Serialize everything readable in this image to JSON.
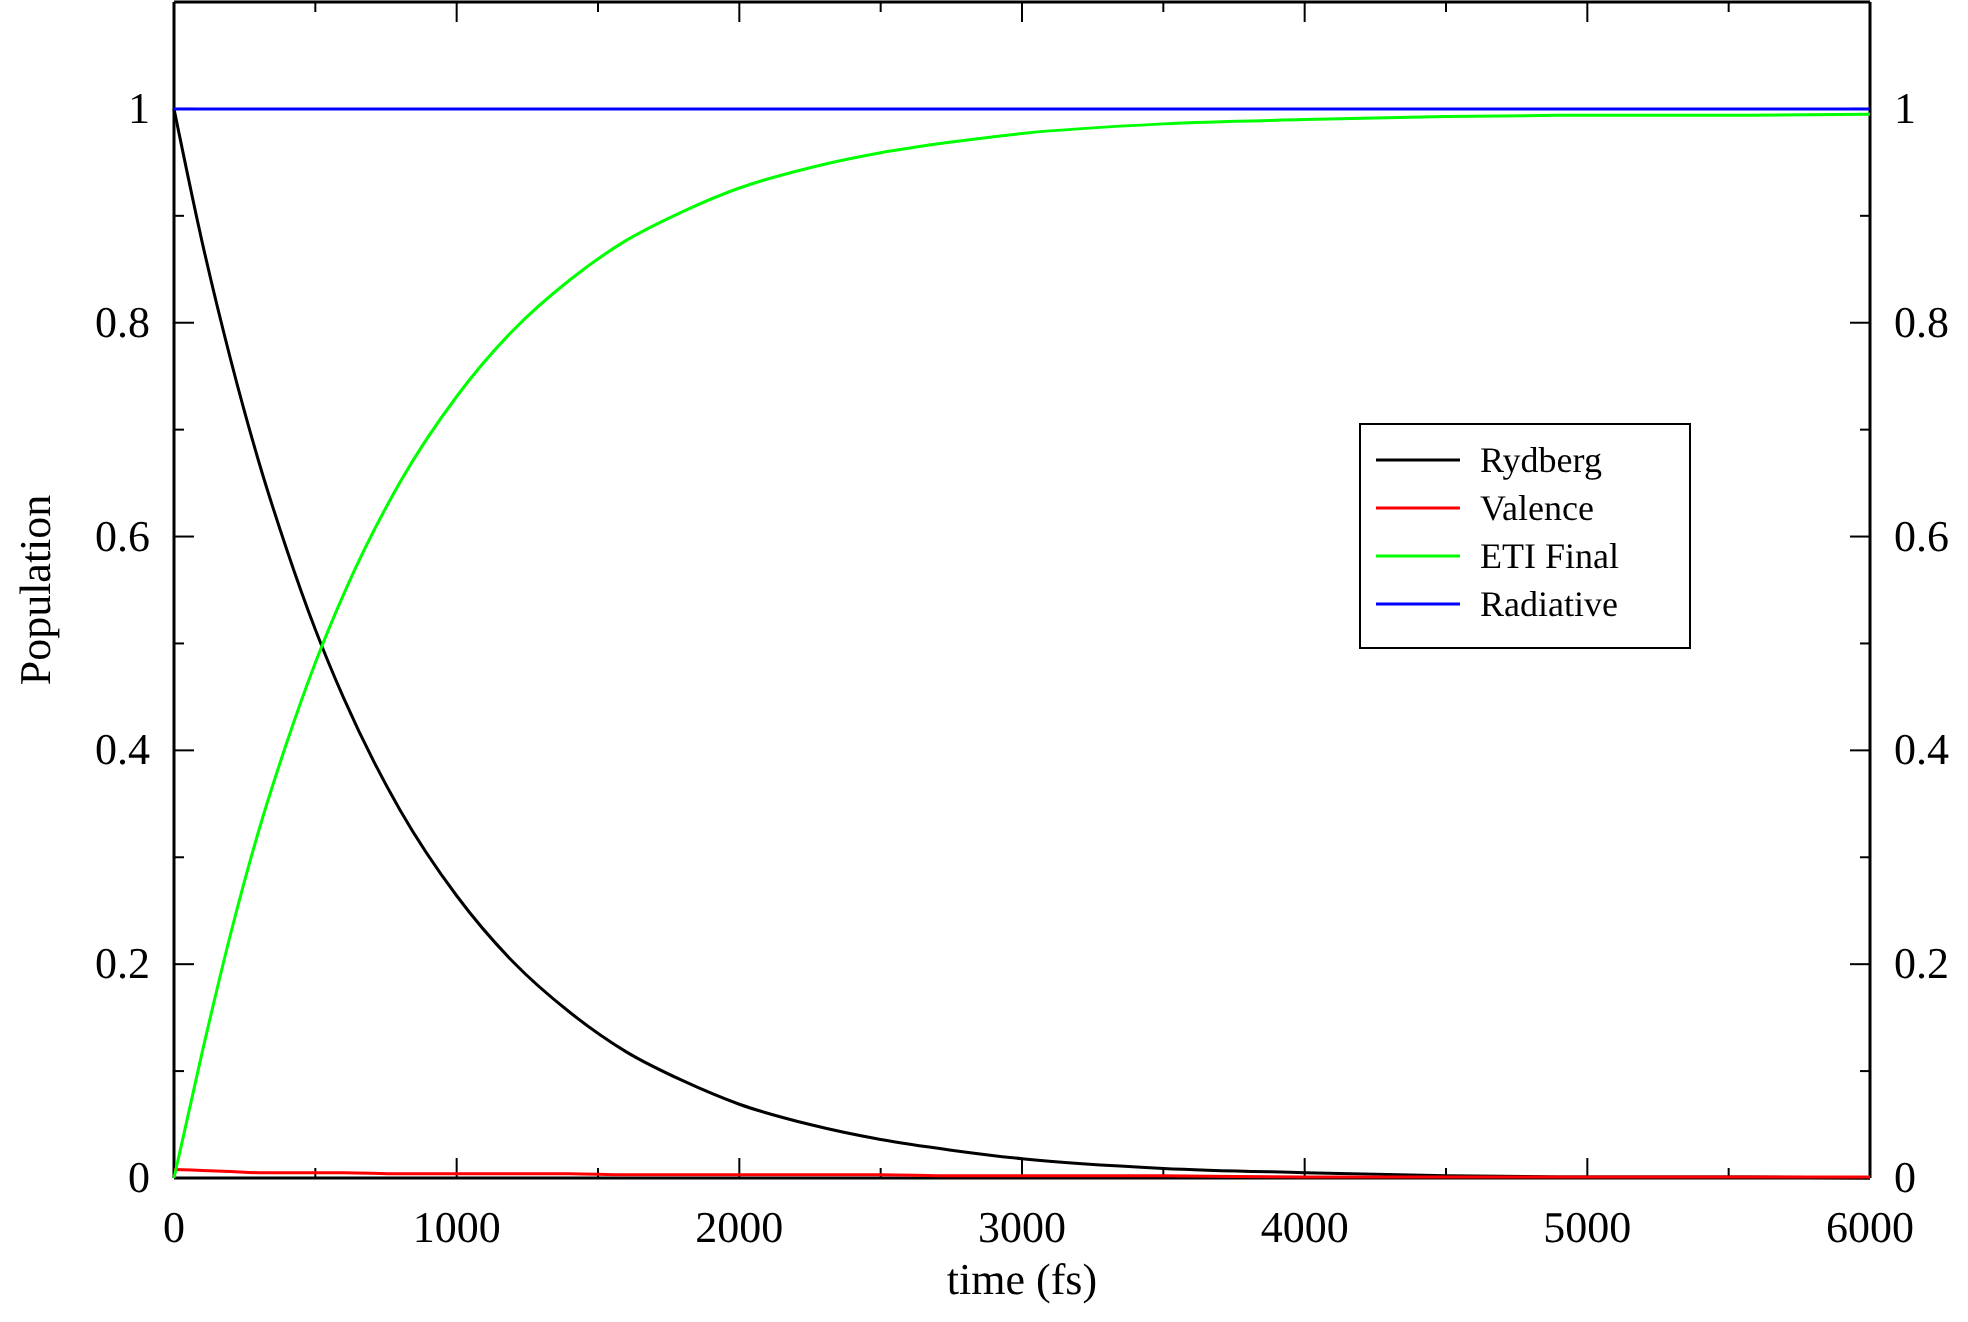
{
  "chart_data": {
    "type": "line",
    "xlabel": "time (fs)",
    "ylabel": "Population",
    "x": [
      0,
      100,
      200,
      300,
      400,
      500,
      600,
      800,
      1000,
      1200,
      1400,
      1600,
      1800,
      2000,
      2250,
      2500,
      2750,
      3000,
      3500,
      4000,
      4500,
      5000,
      5500,
      6000
    ],
    "series": [
      {
        "name": "Rydberg",
        "color": "#000000",
        "values": [
          1,
          0.875,
          0.766,
          0.67,
          0.587,
          0.513,
          0.449,
          0.344,
          0.264,
          0.202,
          0.155,
          0.118,
          0.091,
          0.069,
          0.05,
          0.036,
          0.026,
          0.018,
          0.009,
          0.005,
          0.002,
          0.001,
          0.001,
          0.0
        ]
      },
      {
        "name": "Valence",
        "color": "#ff0000",
        "values": [
          0.008,
          0.007,
          0.006,
          0.005,
          0.005,
          0.005,
          0.005,
          0.004,
          0.004,
          0.004,
          0.004,
          0.003,
          0.003,
          0.003,
          0.003,
          0.003,
          0.002,
          0.002,
          0.002,
          0.001,
          0.001,
          0.001,
          0.001,
          0.001
        ]
      },
      {
        "name": "ETI Final",
        "color": "#00ff00",
        "values": [
          0,
          0.118,
          0.228,
          0.325,
          0.408,
          0.482,
          0.546,
          0.651,
          0.731,
          0.793,
          0.84,
          0.877,
          0.904,
          0.926,
          0.945,
          0.959,
          0.969,
          0.977,
          0.986,
          0.99,
          0.993,
          0.994,
          0.994,
          0.995
        ]
      },
      {
        "name": "Radiative",
        "color": "#0000ff",
        "values": [
          1,
          1,
          1,
          1,
          1,
          1,
          1,
          1,
          1,
          1,
          1,
          1,
          1,
          1,
          1,
          1,
          1,
          1,
          1,
          1,
          1,
          1,
          1,
          1
        ]
      }
    ],
    "xlim": [
      0,
      6000
    ],
    "xticks": [
      0,
      {
        "value": 500,
        "label": null
      },
      1000,
      {
        "value": 1500,
        "label": null
      },
      2000,
      {
        "value": 2500,
        "label": null
      },
      3000,
      {
        "value": 3500,
        "label": null
      },
      4000,
      {
        "value": 4500,
        "label": null
      },
      5000,
      {
        "value": 5500,
        "label": null
      },
      6000
    ],
    "ylim": [
      0,
      1.1
    ],
    "yticks": [
      0,
      {
        "value": 0.1,
        "label": null
      },
      0.2,
      {
        "value": 0.3,
        "label": null
      },
      0.4,
      {
        "value": 0.5,
        "label": null
      },
      0.6,
      {
        "value": 0.7,
        "label": null
      },
      0.8,
      {
        "value": 0.9,
        "label": null
      },
      1
    ],
    "y2lim": [
      0,
      1.1
    ],
    "y2ticks": [
      0,
      {
        "value": 0.1,
        "label": null
      },
      0.2,
      {
        "value": 0.3,
        "label": null
      },
      0.4,
      {
        "value": 0.5,
        "label": null
      },
      0.6,
      {
        "value": 0.7,
        "label": null
      },
      0.8,
      {
        "value": 0.9,
        "label": null
      },
      1
    ],
    "grid": false,
    "legend": "right",
    "marker": "none",
    "line_style": "solid"
  }
}
